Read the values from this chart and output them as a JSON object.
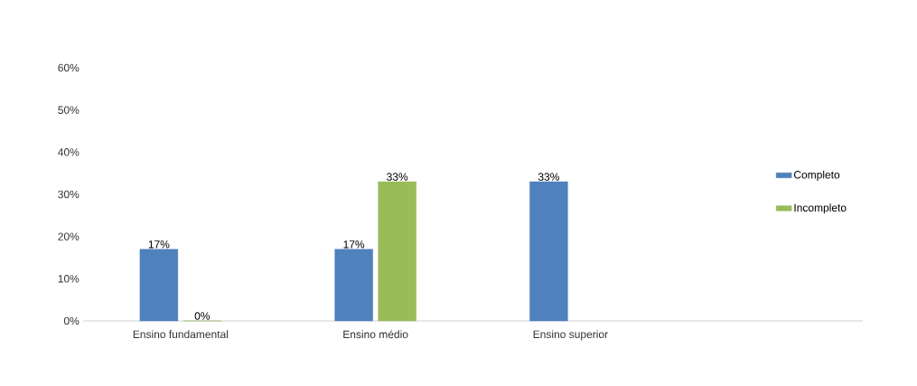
{
  "chart_data": {
    "type": "bar",
    "categories": [
      "Ensino fundamental",
      "Ensino médio",
      "Ensino superior",
      null
    ],
    "series": [
      {
        "name": "Completo",
        "color": "#4f81bd",
        "values": [
          17,
          17,
          33,
          null
        ],
        "value_labels": [
          "17%",
          "17%",
          "33%",
          null
        ]
      },
      {
        "name": "Incompleto",
        "color": "#9bbb59",
        "values": [
          0,
          33,
          null,
          null
        ],
        "value_labels": [
          "0%",
          "33%",
          null,
          null
        ]
      }
    ],
    "ylim": [
      0,
      60
    ],
    "yticks": [
      {
        "value": 0,
        "label": "0%"
      },
      {
        "value": 10,
        "label": "10%"
      },
      {
        "value": 20,
        "label": "20%"
      },
      {
        "value": 30,
        "label": "30%"
      },
      {
        "value": 40,
        "label": "40%"
      },
      {
        "value": 50,
        "label": "50%"
      },
      {
        "value": 60,
        "label": "60%"
      }
    ],
    "legend": "right"
  }
}
